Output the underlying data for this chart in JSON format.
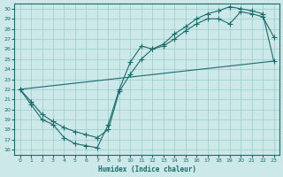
{
  "xlabel": "Humidex (Indice chaleur)",
  "bg_color": "#cce8e8",
  "line_color": "#1a6b6b",
  "grid_color": "#99cccc",
  "xlim": [
    -0.5,
    23.5
  ],
  "ylim": [
    15.5,
    30.5
  ],
  "xticks": [
    0,
    1,
    2,
    3,
    4,
    5,
    6,
    7,
    8,
    9,
    10,
    11,
    12,
    13,
    14,
    15,
    16,
    17,
    18,
    19,
    20,
    21,
    22,
    23
  ],
  "yticks": [
    16,
    17,
    18,
    19,
    20,
    21,
    22,
    23,
    24,
    25,
    26,
    27,
    28,
    29,
    30
  ],
  "line1_x": [
    0,
    1,
    2,
    3,
    4,
    5,
    6,
    7,
    8,
    9,
    10,
    11,
    12,
    13,
    14,
    15,
    16,
    17,
    18,
    19,
    20,
    21,
    22,
    23
  ],
  "line1_y": [
    22,
    20.5,
    19,
    18.5,
    17.2,
    16.6,
    16.4,
    16.2,
    18.5,
    22.0,
    24.7,
    26.3,
    26.0,
    26.3,
    27.0,
    27.8,
    28.5,
    29.0,
    29.0,
    28.5,
    29.7,
    29.5,
    29.2,
    27.2
  ],
  "line2_x": [
    0,
    1,
    2,
    3,
    4,
    5,
    6,
    7,
    8,
    9,
    10,
    11,
    12,
    13,
    14,
    15,
    16,
    17,
    18,
    19,
    20,
    21,
    22,
    23
  ],
  "line2_y": [
    22,
    20.8,
    19.5,
    18.8,
    18.2,
    17.8,
    17.5,
    17.2,
    18.0,
    21.8,
    23.5,
    25.0,
    26.0,
    26.5,
    27.5,
    28.2,
    29.0,
    29.5,
    29.8,
    30.2,
    30.0,
    29.8,
    29.5,
    24.8
  ],
  "line3_x": [
    0,
    23
  ],
  "line3_y": [
    22,
    24.8
  ]
}
